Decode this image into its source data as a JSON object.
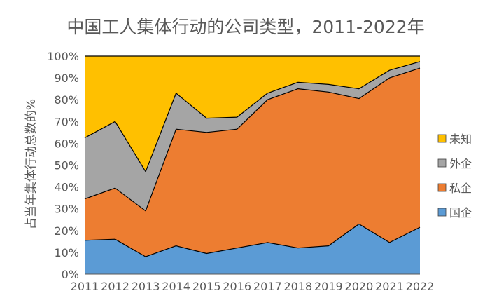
{
  "chart_data": {
    "type": "area",
    "stacked": true,
    "title": "中国工人集体行动的公司类型，2011-2022年",
    "xlabel": "",
    "ylabel": "占当年集体行动总数的%",
    "categories": [
      "2011",
      "2012",
      "2013",
      "2014",
      "2015",
      "2016",
      "2017",
      "2018",
      "2019",
      "2020",
      "2021",
      "2022"
    ],
    "series": [
      {
        "name": "国企",
        "color": "#5b9bd5",
        "values": [
          15.5,
          16,
          8,
          13,
          9.5,
          12,
          14.5,
          12,
          13,
          23,
          14.5,
          21.5
        ]
      },
      {
        "name": "私企",
        "color": "#ed7d31",
        "values": [
          19,
          23.5,
          21,
          53.5,
          55.5,
          54.5,
          65.5,
          73,
          70.5,
          57.5,
          75.5,
          73
        ]
      },
      {
        "name": "外企",
        "color": "#a5a5a5",
        "values": [
          28,
          30.5,
          18,
          16.5,
          6.5,
          5.5,
          3,
          3,
          3.5,
          4.5,
          3.5,
          3
        ]
      },
      {
        "name": "未知",
        "color": "#ffc000",
        "values": [
          37.5,
          30,
          53,
          17,
          28.5,
          28,
          17,
          12,
          13,
          15,
          6.5,
          2.5
        ]
      }
    ],
    "legend_order": [
      "未知",
      "外企",
      "私企",
      "国企"
    ],
    "legend_position": "right",
    "ylim": [
      0,
      100
    ],
    "yticks": [
      0,
      10,
      20,
      30,
      40,
      50,
      60,
      70,
      80,
      90,
      100
    ],
    "ytick_labels": [
      "0%",
      "10%",
      "20%",
      "30%",
      "40%",
      "50%",
      "60%",
      "70%",
      "80%",
      "90%",
      "100%"
    ],
    "grid": false
  }
}
